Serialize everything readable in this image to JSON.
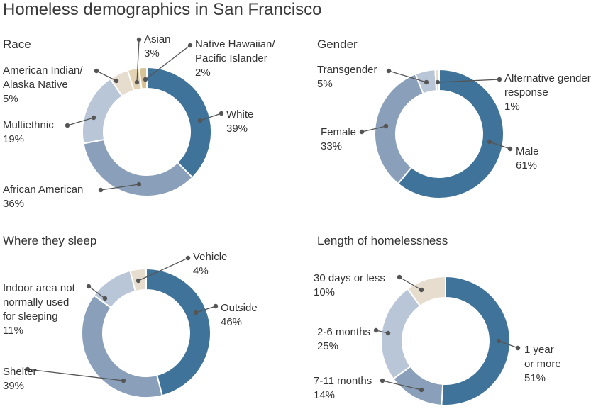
{
  "title": "Homeless demographics in San Francisco",
  "colors": {
    "blue_dark": "#3f7399",
    "blue_mid": "#8aa0ba",
    "blue_light": "#b9c6d8",
    "beige": "#e6ddcf",
    "tan": "#d8c296",
    "label_text": "#333333",
    "leader": "#555555"
  },
  "chart_data": [
    {
      "type": "pie",
      "donut": true,
      "title": "Race",
      "slices": [
        {
          "label": "White",
          "value": 39,
          "display": "39%",
          "color": "#3f7399"
        },
        {
          "label": "African American",
          "value": 36,
          "display": "36%",
          "color": "#8aa0ba"
        },
        {
          "label": "Multiethnic",
          "value": 19,
          "display": "19%",
          "color": "#b9c6d8"
        },
        {
          "label": "American Indian/ Alaska Native",
          "value": 5,
          "display": "5%",
          "color": "#e6ddcf"
        },
        {
          "label": "Asian",
          "value": 3,
          "display": "3%",
          "color": "#e3d3b3"
        },
        {
          "label": "Native Hawaiian/ Pacific Islander",
          "value": 2,
          "display": "2%",
          "color": "#d8c296"
        }
      ]
    },
    {
      "type": "pie",
      "donut": true,
      "title": "Gender",
      "slices": [
        {
          "label": "Male",
          "value": 61,
          "display": "61%",
          "color": "#3f7399"
        },
        {
          "label": "Female",
          "value": 33,
          "display": "33%",
          "color": "#8aa0ba"
        },
        {
          "label": "Transgender",
          "value": 5,
          "display": "5%",
          "color": "#b9c6d8"
        },
        {
          "label": "Alternative gender response",
          "value": 1,
          "display": "1%",
          "color": "#e6ddcf"
        }
      ]
    },
    {
      "type": "pie",
      "donut": true,
      "title": "Where they sleep",
      "slices": [
        {
          "label": "Outside",
          "value": 46,
          "display": "46%",
          "color": "#3f7399"
        },
        {
          "label": "Shelter",
          "value": 39,
          "display": "39%",
          "color": "#8aa0ba"
        },
        {
          "label": "Indoor area not normally used for sleeping",
          "value": 11,
          "display": "11%",
          "color": "#b9c6d8"
        },
        {
          "label": "Vehicle",
          "value": 4,
          "display": "4%",
          "color": "#e6ddcf"
        }
      ]
    },
    {
      "type": "pie",
      "donut": true,
      "title": "Length of  homelessness",
      "slices": [
        {
          "label": "1 year or more",
          "value": 51,
          "display": "51%",
          "color": "#3f7399"
        },
        {
          "label": "7-11 months",
          "value": 14,
          "display": "14%",
          "color": "#8aa0ba"
        },
        {
          "label": "2-6 months",
          "value": 25,
          "display": "25%",
          "color": "#b9c6d8"
        },
        {
          "label": "30 days or less",
          "value": 10,
          "display": "10%",
          "color": "#e6ddcf"
        }
      ]
    }
  ]
}
